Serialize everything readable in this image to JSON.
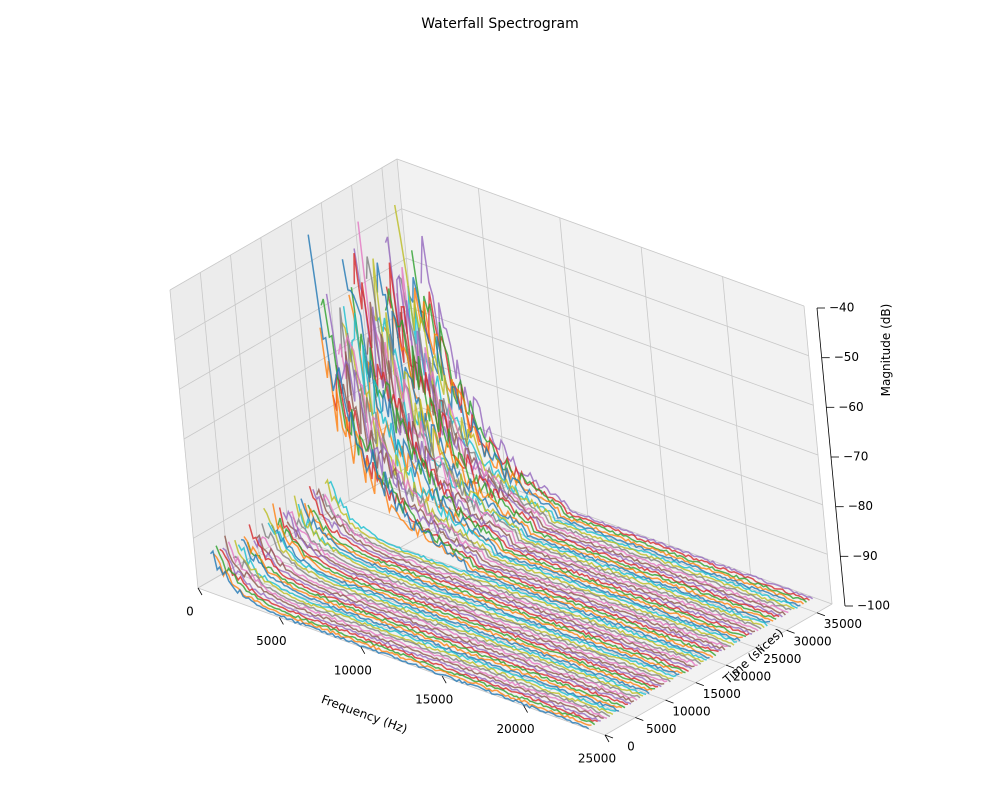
{
  "chart_data": {
    "type": "line",
    "subtype": "3d-waterfall",
    "title": "Waterfall Spectrogram",
    "xlabel": "Frequency (Hz)",
    "ylabel": "Time (slices)",
    "zlabel": "Magnitude (dB)",
    "xlim": [
      0,
      25000
    ],
    "ylim": [
      0,
      37500
    ],
    "zlim": [
      -100,
      -40
    ],
    "x_ticks": [
      0,
      5000,
      10000,
      15000,
      20000,
      25000
    ],
    "y_ticks": [
      0,
      5000,
      10000,
      15000,
      20000,
      25000,
      30000,
      35000
    ],
    "z_ticks": [
      -100,
      -90,
      -80,
      -70,
      -60,
      -50,
      -40
    ],
    "x_tick_labels": [
      "0",
      "5000",
      "10000",
      "15000",
      "20000",
      "25000"
    ],
    "y_tick_labels": [
      "0",
      "5000",
      "10000",
      "15000",
      "20000",
      "25000",
      "30000",
      "35000"
    ],
    "z_tick_labels": [
      "−100",
      "−90",
      "−80",
      "−70",
      "−60",
      "−50",
      "−40"
    ],
    "grid": true,
    "legend": "none",
    "series_count": 75,
    "freq_range": [
      1000,
      24000
    ],
    "time_range": [
      0,
      37000
    ],
    "noise_floor_db": -100,
    "profile": {
      "description": "Energy band concentrated at low frequency, decaying to the noise floor at higher frequencies",
      "early_band": {
        "time_range": [
          0,
          20000
        ],
        "freq_range": [
          1000,
          5000
        ],
        "peak_db": [
          -92,
          -88
        ]
      },
      "late_band": {
        "time_range": [
          20000,
          37000
        ],
        "freq_range": [
          1000,
          9000
        ],
        "peak_db": [
          -60,
          -40
        ]
      }
    },
    "palette": [
      "#1f77b4",
      "#ff7f0e",
      "#2ca02c",
      "#d62728",
      "#9467bd",
      "#8c564b",
      "#e377c2",
      "#7f7f7f",
      "#bcbd22",
      "#17becf"
    ]
  }
}
